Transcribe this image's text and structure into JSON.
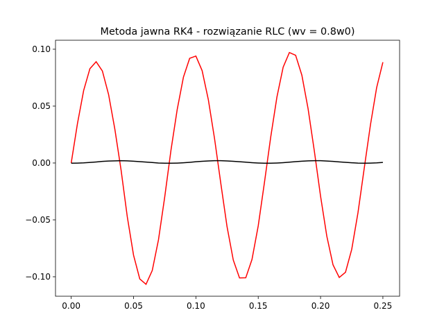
{
  "chart_data": {
    "type": "line",
    "title": "Metoda jawna RK4 - rozwiązanie RLC (wv = 0.8w0)",
    "x": [
      0,
      0.005,
      0.01,
      0.015,
      0.02,
      0.025,
      0.03,
      0.035,
      0.04,
      0.045,
      0.05,
      0.055,
      0.06,
      0.065,
      0.07,
      0.075,
      0.08,
      0.085,
      0.09,
      0.095,
      0.1,
      0.105,
      0.11,
      0.115,
      0.12,
      0.125,
      0.13,
      0.135,
      0.14,
      0.145,
      0.15,
      0.155,
      0.16,
      0.165,
      0.17,
      0.175,
      0.18,
      0.185,
      0.19,
      0.195,
      0.2,
      0.205,
      0.21,
      0.215,
      0.22,
      0.225,
      0.23,
      0.235,
      0.24,
      0.245,
      0.25
    ],
    "series": [
      {
        "color": "#ff0000",
        "values": [
          0,
          0.0346,
          0.0638,
          0.0829,
          0.089,
          0.0809,
          0.0601,
          0.0298,
          -0.0062,
          -0.0474,
          -0.081,
          -0.1019,
          -0.1066,
          -0.0945,
          -0.0675,
          -0.0299,
          0.0111,
          0.0469,
          0.0754,
          0.092,
          0.094,
          0.0812,
          0.0556,
          0.0212,
          -0.018,
          -0.056,
          -0.0853,
          -0.101,
          -0.1009,
          -0.0848,
          -0.0553,
          -0.0171,
          0.0226,
          0.058,
          0.0842,
          0.0971,
          0.0947,
          0.0772,
          0.0477,
          0.0106,
          -0.0291,
          -0.0642,
          -0.0895,
          -0.1006,
          -0.096,
          -0.0759,
          -0.0438,
          -0.0049,
          0.0334,
          0.0663,
          0.0886
        ]
      },
      {
        "color": "#000000",
        "values": [
          -0.0002,
          -0.0001,
          0.0001,
          0.0005,
          0.0009,
          0.0014,
          0.0017,
          0.0019,
          0.002,
          0.0019,
          0.0016,
          0.0012,
          0.0008,
          0.0004,
          0,
          -0.0002,
          -0.0002,
          -0.0001,
          0.0002,
          0.0006,
          0.0011,
          0.0015,
          0.0018,
          0.002,
          0.002,
          0.0018,
          0.0015,
          0.0011,
          0.0007,
          0.0003,
          0,
          -0.0002,
          -0.0002,
          0,
          0.0003,
          0.0007,
          0.0012,
          0.0016,
          0.0019,
          0.002,
          0.002,
          0.0017,
          0.0014,
          0.001,
          0.0006,
          0.0002,
          -0.0001,
          -0.0002,
          -0.0001,
          0.0001,
          0.0005
        ]
      }
    ],
    "xlim": [
      -0.0126,
      0.2634
    ],
    "ylim": [
      -0.1171,
      0.1079
    ],
    "xticks": [
      {
        "value": 0,
        "label": "0.00"
      },
      {
        "value": 0.05,
        "label": "0.05"
      },
      {
        "value": 0.1,
        "label": "0.10"
      },
      {
        "value": 0.15,
        "label": "0.15"
      },
      {
        "value": 0.2,
        "label": "0.20"
      },
      {
        "value": 0.25,
        "label": "0.25"
      }
    ],
    "yticks": [
      {
        "value": -0.1,
        "label": "−0.10"
      },
      {
        "value": -0.05,
        "label": "−0.05"
      },
      {
        "value": 0,
        "label": "0.00"
      },
      {
        "value": 0.05,
        "label": "0.05"
      },
      {
        "value": 0.1,
        "label": "0.10"
      }
    ]
  }
}
